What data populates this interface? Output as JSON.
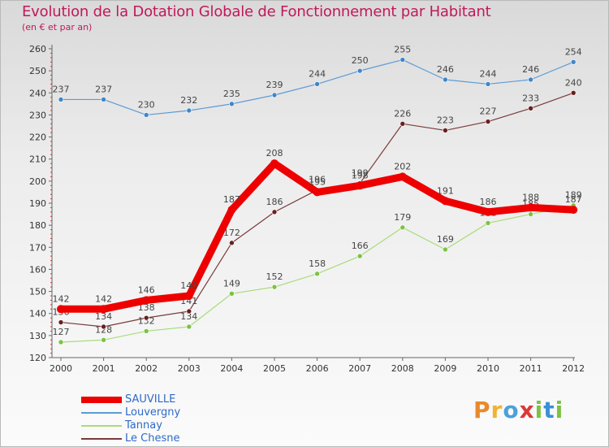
{
  "header": {
    "title": "Evolution de la Dotation Globale de Fonctionnement par Habitant",
    "subtitle": "(en € et par an)"
  },
  "logo": {
    "letters": [
      "P",
      "r",
      "o",
      "x",
      "i",
      "t",
      "i"
    ],
    "colors": [
      "#e8892b",
      "#f2b233",
      "#4ba1d8",
      "#d93a3a",
      "#7cc242",
      "#3a8fd8",
      "#7cc242"
    ]
  },
  "chart_data": {
    "type": "line",
    "x": [
      "2000",
      "2001",
      "2002",
      "2003",
      "2004",
      "2005",
      "2006",
      "2007",
      "2008",
      "2009",
      "2010",
      "2011",
      "2012"
    ],
    "ylim": [
      120,
      260
    ],
    "yticks": [
      120,
      130,
      140,
      150,
      160,
      170,
      180,
      190,
      200,
      210,
      220,
      230,
      240,
      250,
      260
    ],
    "grid": false,
    "legend_position": "bottom-left",
    "series": [
      {
        "name": "Louvergny",
        "color": "#5b9bd5",
        "marker": "#3f86c9",
        "width": 1.2,
        "values": [
          237,
          237,
          230,
          232,
          235,
          239,
          244,
          250,
          255,
          246,
          244,
          246,
          254
        ]
      },
      {
        "name": "Tannay",
        "color": "#a9dc7a",
        "marker": "#7cc242",
        "width": 1.2,
        "values": [
          127,
          128,
          132,
          134,
          149,
          152,
          158,
          166,
          179,
          169,
          181,
          185,
          189
        ]
      },
      {
        "name": "Le Chesne",
        "color": "#7a3b3b",
        "marker": "#6a1f1f",
        "width": 1.2,
        "values": [
          136,
          134,
          138,
          141,
          172,
          186,
          196,
          199,
          226,
          223,
          227,
          233,
          240
        ]
      },
      {
        "name": "SAUVILLE",
        "color": "#ee0000",
        "marker": "#ee0000",
        "width": 9,
        "values": [
          142,
          142,
          146,
          148,
          187,
          208,
          195,
          198,
          202,
          191,
          186,
          188,
          187
        ]
      }
    ],
    "legend_order": [
      "SAUVILLE",
      "Louvergny",
      "Tannay",
      "Le Chesne"
    ]
  }
}
